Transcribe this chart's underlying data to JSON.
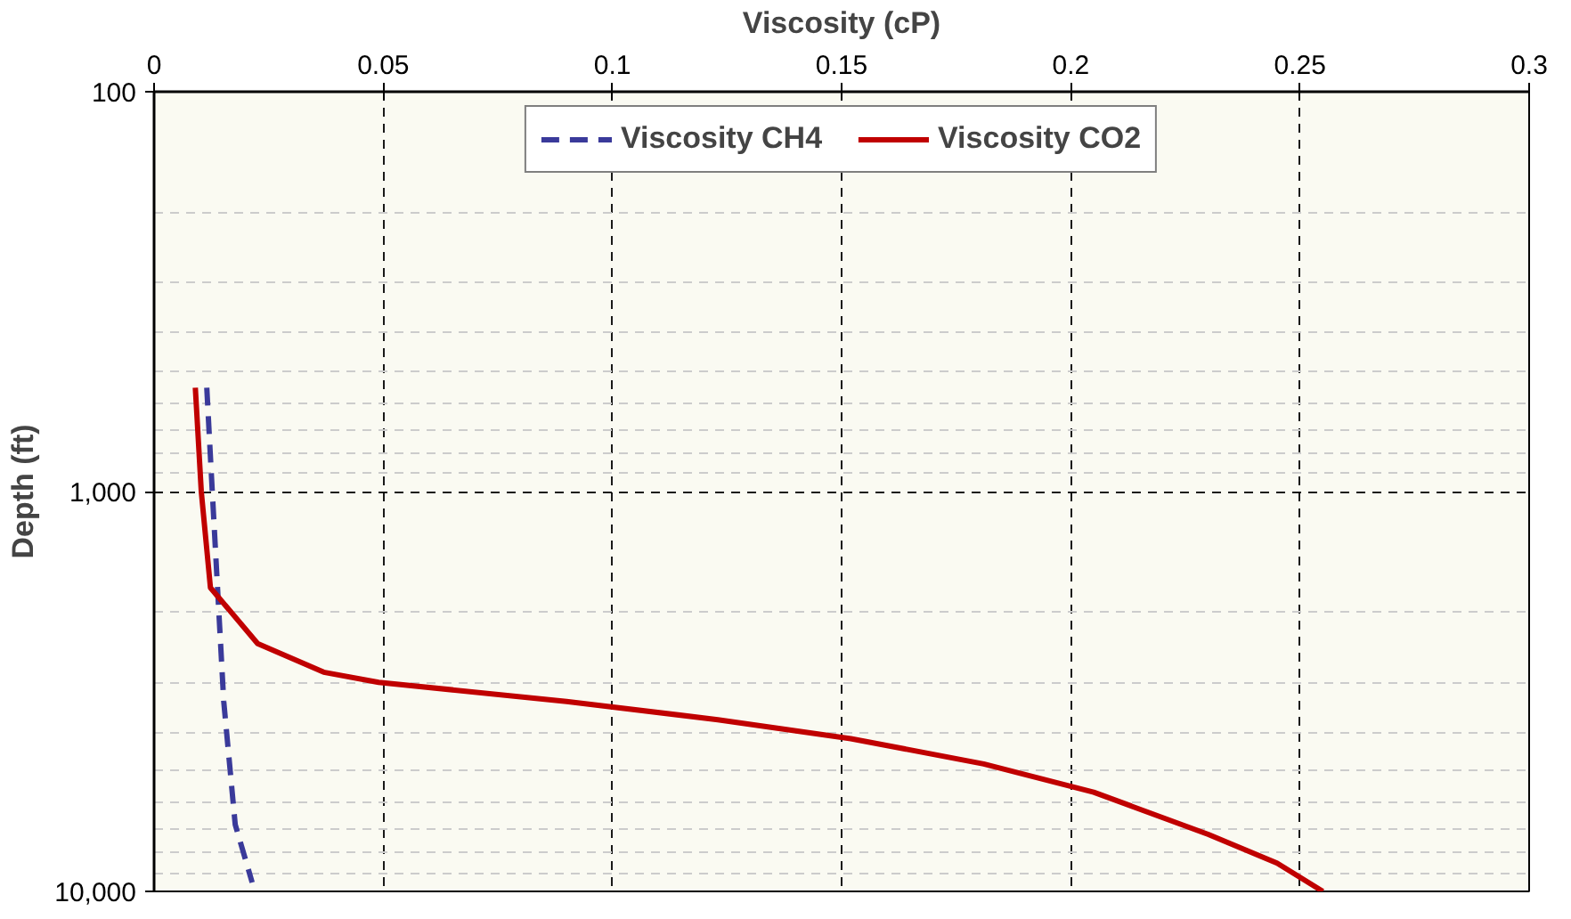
{
  "chart_data": {
    "type": "line",
    "xlabel": "Viscosity (cP)",
    "ylabel": "Depth (ft)",
    "log": "y",
    "grid": true,
    "legend": "top",
    "line_style": "solid",
    "marker": "none",
    "xlim": [
      0,
      0.3
    ],
    "xticks": [
      0,
      0.05,
      0.1,
      0.15,
      0.2,
      0.25,
      0.3
    ],
    "ylim": [
      10000,
      100
    ],
    "yticks": [
      {
        "value": 100,
        "label": "100"
      },
      {
        "value": 1000,
        "label": "1,000"
      },
      {
        "value": 10000,
        "label": "10,000"
      }
    ],
    "series": [
      {
        "name": "Viscosity CH4",
        "color": "#3a3a9a",
        "line_style": "dashed",
        "x": [
          0.0115,
          0.0127,
          0.0152,
          0.0177,
          0.0214
        ],
        "values": [
          550,
          1000,
          3350,
          6800,
          9500
        ]
      },
      {
        "name": "Viscosity CO2",
        "color": "#c00000",
        "x": [
          0.009,
          0.0103,
          0.0123,
          0.0226,
          0.037,
          0.049,
          0.09,
          0.123,
          0.152,
          0.181,
          0.205,
          0.23,
          0.245,
          0.255
        ],
        "values": [
          550,
          1000,
          1740,
          2400,
          2830,
          3000,
          3350,
          3720,
          4150,
          4800,
          5650,
          7200,
          8500,
          10000
        ]
      }
    ]
  }
}
